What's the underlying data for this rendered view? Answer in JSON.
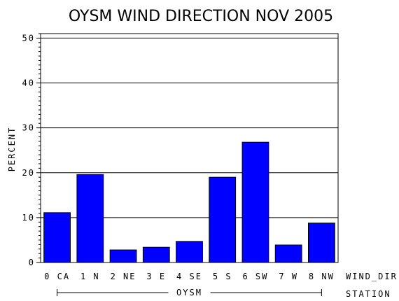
{
  "chart_data": {
    "type": "bar",
    "title": "OYSM WIND DIRECTION NOV 2005",
    "ylabel": "PERCENT",
    "xlabel_row1": "WIND_DIR",
    "xlabel_row2": "STATION",
    "group_label": "OYSM",
    "ylim": [
      0,
      51
    ],
    "yticks": [
      0,
      10,
      20,
      30,
      40,
      50
    ],
    "categories": [
      "0 CA",
      "1 N",
      "2 NE",
      "3 E",
      "4 SE",
      "5 S",
      "6 SW",
      "7 W",
      "8 NW"
    ],
    "values": [
      11.1,
      19.6,
      2.8,
      3.4,
      4.7,
      19.0,
      26.8,
      3.9,
      8.8
    ],
    "bar_color": "#0000ff",
    "grid": true
  }
}
